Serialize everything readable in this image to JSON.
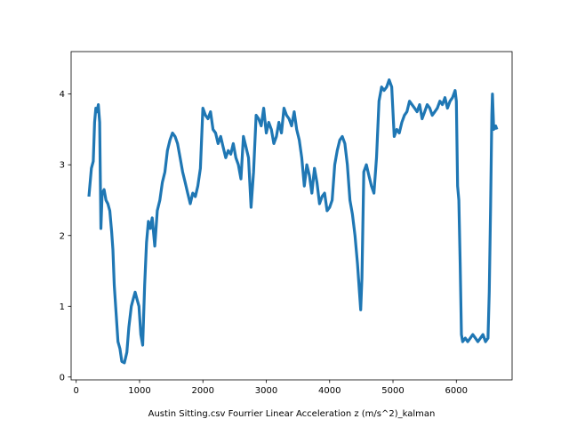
{
  "chart_data": {
    "type": "line",
    "title": "",
    "xlabel": "Austin Sitting.csv Fourrier Linear Acceleration z (m/s^2)_kalman",
    "ylabel": "",
    "xlim": [
      -80,
      6880
    ],
    "ylim": [
      -0.04,
      4.6
    ],
    "xticks": [
      0,
      1000,
      2000,
      3000,
      4000,
      5000,
      6000
    ],
    "yticks": [
      0,
      1,
      2,
      3,
      4
    ],
    "grid": false,
    "legend": "none",
    "series": [
      {
        "color": "#1f77b4",
        "points": [
          [
            200,
            2.55
          ],
          [
            240,
            2.95
          ],
          [
            270,
            3.05
          ],
          [
            290,
            3.6
          ],
          [
            310,
            3.8
          ],
          [
            330,
            3.75
          ],
          [
            350,
            3.85
          ],
          [
            370,
            3.6
          ],
          [
            390,
            2.1
          ],
          [
            410,
            2.6
          ],
          [
            440,
            2.65
          ],
          [
            470,
            2.5
          ],
          [
            500,
            2.45
          ],
          [
            530,
            2.35
          ],
          [
            560,
            2.05
          ],
          [
            580,
            1.8
          ],
          [
            600,
            1.3
          ],
          [
            630,
            0.9
          ],
          [
            660,
            0.5
          ],
          [
            690,
            0.4
          ],
          [
            720,
            0.22
          ],
          [
            760,
            0.2
          ],
          [
            800,
            0.35
          ],
          [
            830,
            0.7
          ],
          [
            870,
            1.0
          ],
          [
            900,
            1.1
          ],
          [
            930,
            1.2
          ],
          [
            960,
            1.1
          ],
          [
            990,
            1.0
          ],
          [
            1020,
            0.6
          ],
          [
            1050,
            0.45
          ],
          [
            1080,
            1.3
          ],
          [
            1110,
            1.9
          ],
          [
            1140,
            2.2
          ],
          [
            1170,
            2.1
          ],
          [
            1200,
            2.25
          ],
          [
            1240,
            1.85
          ],
          [
            1280,
            2.35
          ],
          [
            1320,
            2.5
          ],
          [
            1360,
            2.75
          ],
          [
            1400,
            2.9
          ],
          [
            1440,
            3.2
          ],
          [
            1480,
            3.35
          ],
          [
            1520,
            3.45
          ],
          [
            1560,
            3.4
          ],
          [
            1600,
            3.3
          ],
          [
            1640,
            3.1
          ],
          [
            1680,
            2.9
          ],
          [
            1720,
            2.75
          ],
          [
            1760,
            2.6
          ],
          [
            1800,
            2.45
          ],
          [
            1840,
            2.6
          ],
          [
            1880,
            2.55
          ],
          [
            1920,
            2.7
          ],
          [
            1960,
            2.95
          ],
          [
            2000,
            3.8
          ],
          [
            2040,
            3.7
          ],
          [
            2080,
            3.65
          ],
          [
            2120,
            3.75
          ],
          [
            2160,
            3.5
          ],
          [
            2200,
            3.45
          ],
          [
            2240,
            3.3
          ],
          [
            2280,
            3.4
          ],
          [
            2320,
            3.25
          ],
          [
            2360,
            3.1
          ],
          [
            2400,
            3.2
          ],
          [
            2440,
            3.15
          ],
          [
            2480,
            3.3
          ],
          [
            2520,
            3.1
          ],
          [
            2560,
            3.0
          ],
          [
            2600,
            2.8
          ],
          [
            2640,
            3.4
          ],
          [
            2680,
            3.25
          ],
          [
            2720,
            3.1
          ],
          [
            2760,
            2.4
          ],
          [
            2800,
            2.9
          ],
          [
            2840,
            3.7
          ],
          [
            2880,
            3.65
          ],
          [
            2920,
            3.55
          ],
          [
            2960,
            3.8
          ],
          [
            3000,
            3.45
          ],
          [
            3040,
            3.6
          ],
          [
            3080,
            3.5
          ],
          [
            3120,
            3.3
          ],
          [
            3160,
            3.4
          ],
          [
            3200,
            3.6
          ],
          [
            3240,
            3.45
          ],
          [
            3280,
            3.8
          ],
          [
            3320,
            3.7
          ],
          [
            3360,
            3.65
          ],
          [
            3400,
            3.55
          ],
          [
            3440,
            3.75
          ],
          [
            3480,
            3.5
          ],
          [
            3520,
            3.35
          ],
          [
            3560,
            3.1
          ],
          [
            3600,
            2.7
          ],
          [
            3640,
            3.0
          ],
          [
            3680,
            2.85
          ],
          [
            3720,
            2.6
          ],
          [
            3760,
            2.95
          ],
          [
            3800,
            2.75
          ],
          [
            3840,
            2.45
          ],
          [
            3880,
            2.55
          ],
          [
            3920,
            2.6
          ],
          [
            3960,
            2.35
          ],
          [
            4000,
            2.4
          ],
          [
            4040,
            2.5
          ],
          [
            4080,
            3.0
          ],
          [
            4120,
            3.2
          ],
          [
            4160,
            3.35
          ],
          [
            4200,
            3.4
          ],
          [
            4240,
            3.3
          ],
          [
            4280,
            3.0
          ],
          [
            4320,
            2.5
          ],
          [
            4360,
            2.3
          ],
          [
            4400,
            2.0
          ],
          [
            4440,
            1.6
          ],
          [
            4470,
            1.2
          ],
          [
            4490,
            0.95
          ],
          [
            4510,
            1.4
          ],
          [
            4540,
            2.9
          ],
          [
            4580,
            3.0
          ],
          [
            4620,
            2.85
          ],
          [
            4660,
            2.7
          ],
          [
            4700,
            2.6
          ],
          [
            4740,
            3.1
          ],
          [
            4780,
            3.9
          ],
          [
            4820,
            4.1
          ],
          [
            4860,
            4.05
          ],
          [
            4900,
            4.1
          ],
          [
            4940,
            4.2
          ],
          [
            4980,
            4.1
          ],
          [
            5020,
            3.4
          ],
          [
            5060,
            3.5
          ],
          [
            5100,
            3.45
          ],
          [
            5140,
            3.6
          ],
          [
            5180,
            3.7
          ],
          [
            5220,
            3.75
          ],
          [
            5260,
            3.9
          ],
          [
            5300,
            3.85
          ],
          [
            5340,
            3.8
          ],
          [
            5380,
            3.75
          ],
          [
            5420,
            3.85
          ],
          [
            5460,
            3.65
          ],
          [
            5500,
            3.75
          ],
          [
            5540,
            3.85
          ],
          [
            5580,
            3.8
          ],
          [
            5620,
            3.7
          ],
          [
            5660,
            3.75
          ],
          [
            5700,
            3.8
          ],
          [
            5740,
            3.9
          ],
          [
            5780,
            3.85
          ],
          [
            5820,
            3.95
          ],
          [
            5860,
            3.8
          ],
          [
            5900,
            3.9
          ],
          [
            5940,
            3.95
          ],
          [
            5980,
            4.05
          ],
          [
            6000,
            3.9
          ],
          [
            6020,
            2.7
          ],
          [
            6040,
            2.5
          ],
          [
            6060,
            1.6
          ],
          [
            6080,
            0.6
          ],
          [
            6100,
            0.5
          ],
          [
            6140,
            0.55
          ],
          [
            6180,
            0.5
          ],
          [
            6220,
            0.55
          ],
          [
            6260,
            0.6
          ],
          [
            6300,
            0.55
          ],
          [
            6340,
            0.5
          ],
          [
            6380,
            0.55
          ],
          [
            6420,
            0.6
          ],
          [
            6460,
            0.5
          ],
          [
            6500,
            0.55
          ],
          [
            6520,
            1.2
          ],
          [
            6540,
            2.4
          ],
          [
            6560,
            3.7
          ],
          [
            6570,
            4.0
          ],
          [
            6590,
            3.5
          ],
          [
            6620,
            3.55
          ],
          [
            6640,
            3.5
          ]
        ]
      }
    ]
  }
}
